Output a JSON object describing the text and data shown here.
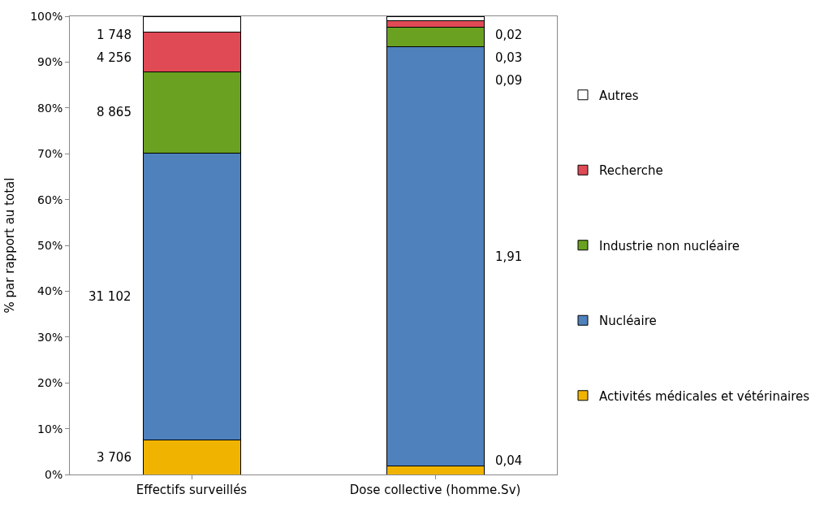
{
  "chart_data": {
    "type": "bar",
    "stacked": true,
    "ylabel": "% par rapport au total",
    "categories": [
      "Effectifs surveillés",
      "Dose collective (homme.Sv)"
    ],
    "series": [
      {
        "name": "Activités médicales et vétérinaires",
        "color": "#f0b400",
        "values": [
          7.5,
          1.9
        ]
      },
      {
        "name": "Nucléaire",
        "color": "#4f81bd",
        "values": [
          62.6,
          91.4
        ]
      },
      {
        "name": "Industrie non nucléaire",
        "color": "#6aa121",
        "values": [
          17.8,
          4.3
        ]
      },
      {
        "name": "Recherche",
        "color": "#e04a55",
        "values": [
          8.6,
          1.4
        ]
      },
      {
        "name": "Autres",
        "color": "#ffffff",
        "values": [
          3.5,
          1.0
        ]
      }
    ],
    "annotations": [
      "3 706",
      "31 102",
      "8 865",
      "4 256",
      "1 748",
      "0,04",
      "1,91",
      "0,09",
      "0,03",
      "0,02"
    ],
    "ylim": [
      0,
      100
    ],
    "yticks": [
      {
        "value": 0,
        "label": "0%"
      },
      {
        "value": 10,
        "label": "10%"
      },
      {
        "value": 20,
        "label": "20%"
      },
      {
        "value": 30,
        "label": "30%"
      },
      {
        "value": 40,
        "label": "40%"
      },
      {
        "value": 50,
        "label": "50%"
      },
      {
        "value": 60,
        "label": "60%"
      },
      {
        "value": 70,
        "label": "70%"
      },
      {
        "value": 80,
        "label": "80%"
      },
      {
        "value": 90,
        "label": "90%"
      },
      {
        "value": 100,
        "label": "100%"
      }
    ],
    "legend": "right"
  }
}
